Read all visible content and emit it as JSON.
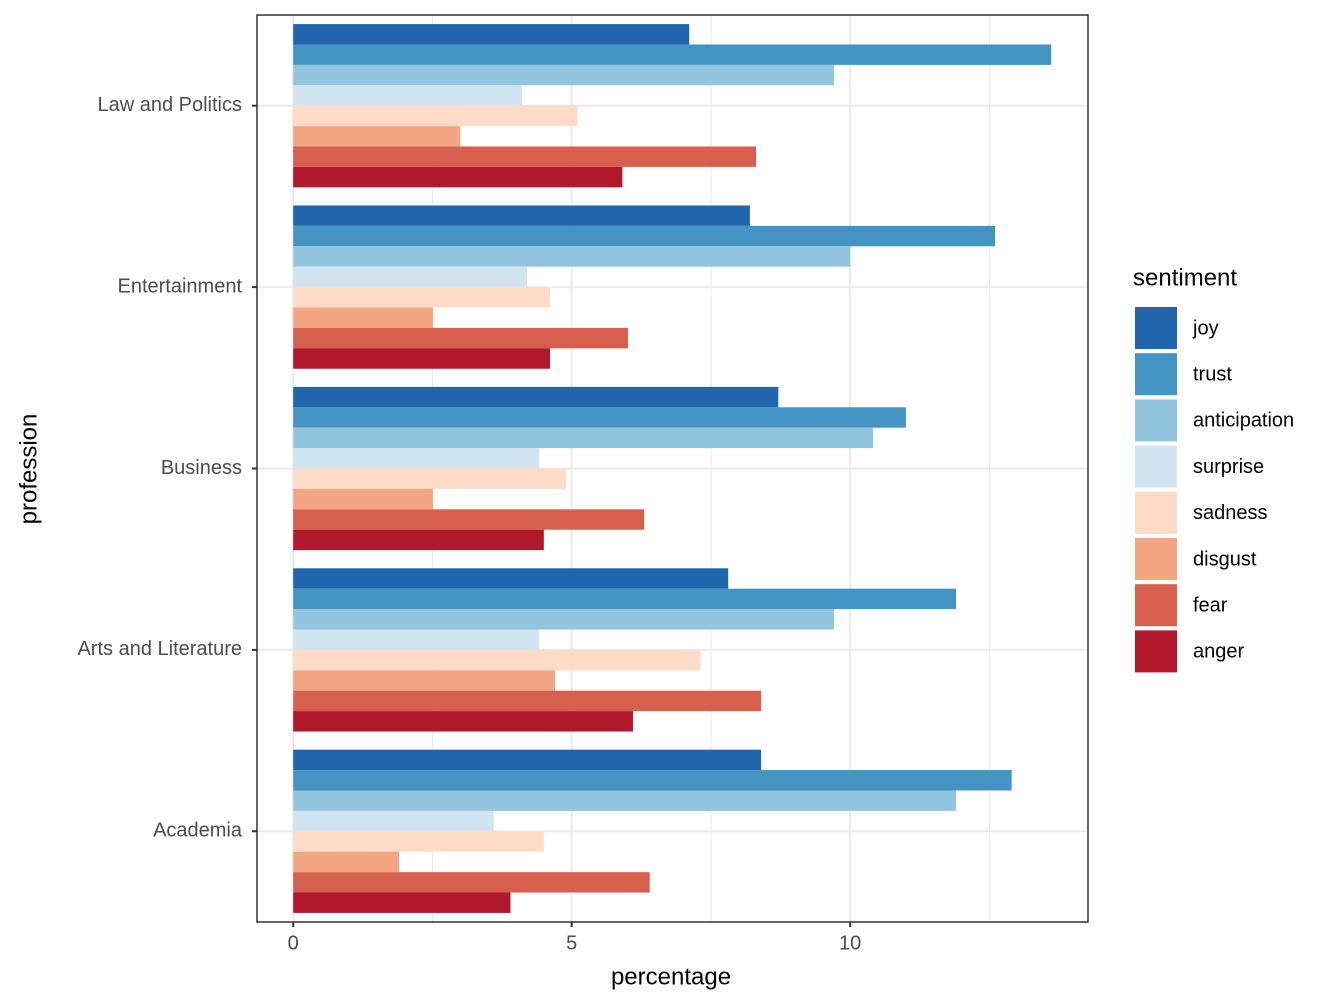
{
  "chart_data": {
    "type": "bar",
    "orientation": "horizontal",
    "x_label": "percentage",
    "y_label": "profession",
    "legend_title": "sentiment",
    "legend_position": "right",
    "categories": [
      "Law and Politics",
      "Entertainment",
      "Business",
      "Arts and Literature",
      "Academia"
    ],
    "series": [
      {
        "name": "joy",
        "color": "#2166ac",
        "values": [
          7.11,
          8.2,
          8.71,
          7.81,
          8.4
        ]
      },
      {
        "name": "trust",
        "color": "#4393c3",
        "values": [
          13.61,
          12.6,
          11.0,
          11.9,
          12.9
        ]
      },
      {
        "name": "anticipation",
        "color": "#92c5de",
        "values": [
          9.71,
          10.0,
          10.41,
          9.71,
          11.9
        ]
      },
      {
        "name": "surprise",
        "color": "#d1e5f0",
        "values": [
          4.11,
          4.2,
          4.42,
          4.42,
          3.6
        ]
      },
      {
        "name": "sadness",
        "color": "#fddbc7",
        "values": [
          5.1,
          4.61,
          4.9,
          7.31,
          4.5
        ]
      },
      {
        "name": "disgust",
        "color": "#f4a582",
        "values": [
          3.0,
          2.51,
          2.51,
          4.7,
          1.9
        ]
      },
      {
        "name": "fear",
        "color": "#d6604d",
        "values": [
          8.31,
          6.01,
          6.3,
          8.4,
          6.4
        ]
      },
      {
        "name": "anger",
        "color": "#b2182b",
        "values": [
          5.91,
          4.61,
          4.5,
          6.1,
          3.9
        ]
      }
    ],
    "xlim": [
      -0.65,
      14.27
    ],
    "xticks": [
      0,
      5,
      10
    ],
    "xminor": [
      2.5,
      7.5,
      12.5
    ],
    "grid": true
  }
}
